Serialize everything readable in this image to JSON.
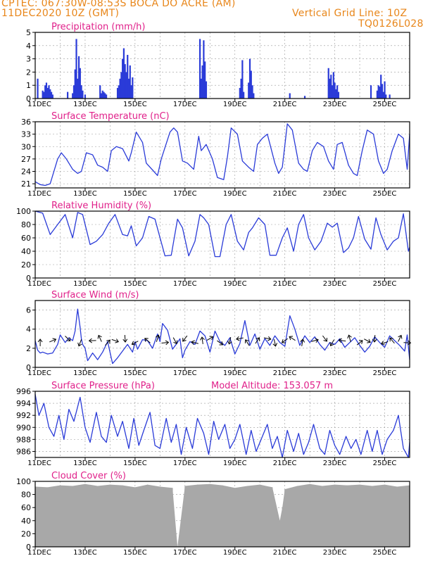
{
  "header": {
    "line1": "CPTEC:   067:30W-08:53S   BOCA DO ACRE (AM)",
    "line2": "11DEC2020 10Z (GMT)",
    "grid_note": "Vertical Grid Line: 10Z",
    "run_id": "TQ0126L028"
  },
  "colors": {
    "header": "#e8861a",
    "title": "#e0208a",
    "series": "#2a3bd8",
    "cloud": "#a8a8a8",
    "wind_arrow": "#000000",
    "grid": "#999999"
  },
  "chart_data": [
    {
      "type": "bar",
      "title": "Precipitation (mm/h)",
      "ylim": [
        0,
        5
      ],
      "yticks": [
        "0",
        "1",
        "2",
        "3",
        "4",
        "5"
      ],
      "xticks": [
        "11DEC",
        "13DEC",
        "15DEC",
        "17DEC",
        "19DEC",
        "21DEC",
        "23DEC",
        "25DEC"
      ],
      "grid": true,
      "x": [
        11.1,
        11.3,
        11.35,
        11.4,
        11.45,
        11.5,
        11.55,
        11.6,
        11.65,
        11.7,
        12.3,
        12.5,
        12.55,
        12.6,
        12.65,
        12.7,
        12.75,
        12.8,
        12.85,
        12.9,
        13.0,
        13.6,
        13.65,
        13.7,
        13.75,
        13.8,
        13.85,
        14.3,
        14.35,
        14.4,
        14.45,
        14.5,
        14.55,
        14.6,
        14.65,
        14.7,
        14.75,
        14.8,
        14.85,
        14.9,
        17.6,
        17.65,
        17.7,
        17.75,
        17.8,
        17.85,
        19.2,
        19.25,
        19.3,
        19.35,
        19.55,
        19.6,
        19.65,
        19.7,
        19.75,
        21.2,
        21.8,
        22.75,
        22.8,
        22.85,
        22.9,
        22.95,
        23.0,
        23.05,
        23.1,
        23.15,
        24.45,
        24.7,
        24.75,
        24.8,
        24.85,
        24.9,
        24.95,
        25.0,
        25.05,
        25.2
      ],
      "values": [
        1.5,
        0.6,
        0.5,
        1.0,
        1.2,
        0.8,
        1.0,
        0.7,
        0.5,
        0.3,
        0.5,
        0.4,
        1.0,
        2.2,
        4.5,
        1.5,
        3.2,
        2.3,
        1.0,
        0.6,
        0.3,
        1.0,
        0.4,
        0.6,
        0.5,
        0.4,
        0.3,
        0.8,
        1.0,
        1.5,
        2.0,
        3.0,
        3.8,
        2.6,
        2.0,
        3.3,
        1.5,
        2.5,
        1.0,
        1.6,
        4.5,
        1.5,
        2.5,
        4.4,
        2.8,
        1.3,
        0.8,
        1.5,
        2.9,
        0.5,
        1.2,
        3.0,
        2.1,
        1.0,
        0.4,
        0.4,
        0.2,
        2.3,
        1.5,
        1.8,
        1.0,
        2.0,
        1.2,
        0.7,
        1.0,
        0.5,
        1.0,
        0.6,
        1.0,
        0.9,
        1.8,
        1.1,
        0.5,
        1.3,
        0.3,
        0.3
      ]
    },
    {
      "type": "line",
      "title": "Surface Temperature (nC)",
      "ylim": [
        20,
        36
      ],
      "yticks": [
        "21",
        "24",
        "27",
        "30",
        "33",
        "36"
      ],
      "xticks": [
        "11DEC",
        "13DEC",
        "15DEC",
        "17DEC",
        "19DEC",
        "21DEC",
        "23DEC",
        "25DEC"
      ],
      "grid": true,
      "x": [
        11.0,
        11.2,
        11.4,
        11.6,
        11.9,
        12.05,
        12.25,
        12.5,
        12.7,
        12.85,
        13.05,
        13.3,
        13.5,
        13.7,
        13.9,
        14.05,
        14.25,
        14.5,
        14.75,
        14.85,
        15.05,
        15.3,
        15.45,
        15.75,
        15.9,
        16.05,
        16.4,
        16.55,
        16.7,
        16.9,
        17.1,
        17.35,
        17.55,
        17.65,
        17.85,
        18.1,
        18.3,
        18.55,
        18.7,
        18.85,
        19.1,
        19.3,
        19.55,
        19.75,
        19.9,
        20.1,
        20.3,
        20.6,
        20.75,
        20.9,
        21.1,
        21.3,
        21.55,
        21.75,
        21.9,
        22.1,
        22.3,
        22.55,
        22.75,
        22.95,
        23.1,
        23.3,
        23.55,
        23.75,
        23.9,
        24.1,
        24.3,
        24.55,
        24.75,
        24.95,
        25.1,
        25.3,
        25.55,
        25.75,
        25.9,
        26.0
      ],
      "values": [
        21.5,
        20.8,
        20.6,
        21.0,
        27.0,
        28.5,
        27.0,
        24.5,
        23.5,
        24.0,
        28.5,
        28.0,
        25.5,
        25.0,
        24.0,
        29.0,
        30.0,
        29.5,
        26.5,
        28.5,
        33.5,
        31.0,
        26.0,
        24.0,
        23.0,
        27.0,
        33.5,
        34.5,
        33.5,
        26.5,
        26.0,
        24.5,
        32.5,
        29.0,
        30.5,
        27.0,
        22.5,
        22.0,
        27.5,
        34.5,
        33.0,
        26.5,
        25.0,
        24.0,
        30.5,
        32.0,
        33.0,
        26.0,
        23.5,
        25.0,
        35.5,
        34.0,
        26.0,
        24.5,
        24.0,
        29.0,
        31.0,
        30.0,
        26.5,
        24.5,
        30.5,
        31.0,
        25.5,
        23.5,
        23.0,
        29.0,
        34.0,
        33.0,
        26.5,
        23.5,
        24.5,
        29.0,
        33.0,
        32.0,
        24.5,
        33.0
      ]
    },
    {
      "type": "line",
      "title": "Relative Humidity (%)",
      "ylim": [
        0,
        100
      ],
      "yticks": [
        "0",
        "20",
        "40",
        "60",
        "80",
        "100"
      ],
      "xticks": [
        "11DEC",
        "13DEC",
        "15DEC",
        "17DEC",
        "19DEC",
        "21DEC",
        "23DEC",
        "25DEC"
      ],
      "grid": true,
      "x": [
        11.0,
        11.3,
        11.6,
        11.9,
        12.2,
        12.5,
        12.7,
        12.9,
        13.2,
        13.45,
        13.7,
        13.95,
        14.2,
        14.5,
        14.7,
        14.85,
        15.05,
        15.3,
        15.55,
        15.8,
        15.95,
        16.2,
        16.45,
        16.7,
        16.9,
        17.15,
        17.4,
        17.6,
        17.75,
        17.95,
        18.2,
        18.4,
        18.65,
        18.85,
        19.1,
        19.35,
        19.55,
        19.7,
        19.95,
        20.2,
        20.4,
        20.65,
        20.9,
        21.1,
        21.35,
        21.55,
        21.75,
        21.95,
        22.2,
        22.45,
        22.7,
        22.9,
        23.1,
        23.35,
        23.55,
        23.75,
        23.95,
        24.2,
        24.45,
        24.65,
        24.85,
        25.1,
        25.35,
        25.55,
        25.75,
        25.95,
        26.0
      ],
      "values": [
        100,
        97,
        65,
        80,
        95,
        60,
        98,
        95,
        50,
        55,
        65,
        82,
        95,
        65,
        63,
        78,
        48,
        60,
        92,
        88,
        67,
        33,
        34,
        88,
        75,
        33,
        55,
        95,
        90,
        80,
        32,
        32,
        80,
        95,
        55,
        42,
        68,
        75,
        90,
        80,
        34,
        34,
        60,
        75,
        40,
        80,
        95,
        60,
        42,
        55,
        82,
        76,
        82,
        38,
        45,
        60,
        92,
        58,
        43,
        90,
        65,
        42,
        55,
        60,
        96,
        40,
        46
      ]
    },
    {
      "type": "line",
      "title": "Surface Wind (m/s)",
      "ylim": [
        0,
        7
      ],
      "yticks": [
        "0",
        "2",
        "4",
        "6"
      ],
      "xticks": [
        "11DEC",
        "13DEC",
        "15DEC",
        "17DEC",
        "19DEC",
        "21DEC",
        "23DEC",
        "25DEC"
      ],
      "grid": true,
      "x": [
        11.0,
        11.1,
        11.2,
        11.3,
        11.5,
        11.7,
        11.9,
        12.0,
        12.2,
        12.35,
        12.5,
        12.6,
        12.7,
        12.8,
        12.85,
        12.9,
        13.0,
        13.1,
        13.3,
        13.5,
        13.7,
        13.9,
        14.1,
        14.3,
        14.5,
        14.7,
        14.9,
        15.0,
        15.1,
        15.3,
        15.5,
        15.7,
        15.9,
        16.0,
        16.1,
        16.3,
        16.5,
        16.7,
        16.8,
        16.9,
        17.0,
        17.2,
        17.4,
        17.6,
        17.8,
        18.0,
        18.2,
        18.4,
        18.6,
        18.8,
        19.0,
        19.2,
        19.4,
        19.6,
        19.8,
        20.0,
        20.2,
        20.4,
        20.6,
        20.8,
        21.0,
        21.2,
        21.4,
        21.6,
        21.8,
        22.0,
        22.2,
        22.4,
        22.6,
        22.8,
        23.0,
        23.2,
        23.4,
        23.6,
        23.8,
        24.0,
        24.2,
        24.4,
        24.6,
        24.8,
        25.0,
        25.2,
        25.4,
        25.6,
        25.8,
        25.9,
        26.0
      ],
      "values": [
        2.8,
        1.8,
        1.5,
        1.6,
        1.4,
        1.5,
        2.4,
        3.4,
        2.6,
        3.1,
        2.8,
        3.8,
        6.1,
        4.2,
        3.0,
        2.4,
        2.0,
        0.7,
        1.5,
        0.8,
        1.6,
        2.7,
        0.4,
        1.0,
        1.7,
        2.4,
        1.6,
        2.7,
        1.9,
        2.9,
        2.8,
        2.0,
        3.5,
        2.7,
        4.6,
        3.9,
        1.9,
        2.6,
        3.0,
        1.0,
        1.8,
        2.7,
        2.4,
        3.8,
        3.3,
        1.6,
        3.8,
        2.7,
        2.3,
        3.1,
        1.4,
        2.5,
        4.9,
        2.3,
        3.5,
        1.9,
        3.0,
        2.3,
        3.3,
        2.6,
        2.2,
        5.4,
        4.0,
        2.3,
        3.3,
        2.6,
        3.2,
        2.4,
        1.8,
        2.6,
        2.4,
        3.0,
        2.1,
        2.6,
        3.1,
        2.3,
        1.6,
        2.2,
        3.2,
        2.6,
        2.1,
        3.3,
        2.8,
        2.3,
        1.7,
        3.4,
        0.8
      ]
    },
    {
      "type": "line",
      "title": "Surface Pressure (hPa)",
      "annotation": "Model Altitude: 153.057 m",
      "ylim": [
        985,
        996
      ],
      "yticks": [
        "986",
        "988",
        "990",
        "992",
        "994",
        "996"
      ],
      "xticks": [
        "11DEC",
        "13DEC",
        "15DEC",
        "17DEC",
        "19DEC",
        "21DEC",
        "23DEC",
        "25DEC"
      ],
      "grid": true,
      "x": [
        11.0,
        11.15,
        11.35,
        11.55,
        11.75,
        11.95,
        12.15,
        12.35,
        12.55,
        12.8,
        13.0,
        13.2,
        13.45,
        13.65,
        13.85,
        14.05,
        14.3,
        14.5,
        14.75,
        14.95,
        15.15,
        15.35,
        15.6,
        15.8,
        16.0,
        16.25,
        16.45,
        16.65,
        16.85,
        17.05,
        17.3,
        17.5,
        17.75,
        17.95,
        18.15,
        18.35,
        18.6,
        18.8,
        19.0,
        19.2,
        19.45,
        19.65,
        19.85,
        20.05,
        20.3,
        20.5,
        20.7,
        20.9,
        21.1,
        21.35,
        21.55,
        21.75,
        21.95,
        22.15,
        22.4,
        22.6,
        22.8,
        23.0,
        23.2,
        23.45,
        23.65,
        23.85,
        24.05,
        24.3,
        24.5,
        24.7,
        24.9,
        25.1,
        25.35,
        25.55,
        25.75,
        25.95,
        26.0
      ],
      "values": [
        995.5,
        992.0,
        994.0,
        990.0,
        988.5,
        992.0,
        988.0,
        993.0,
        991.0,
        995.0,
        990.0,
        987.5,
        992.5,
        988.5,
        987.5,
        992.0,
        988.5,
        991.0,
        986.5,
        991.5,
        987.0,
        989.5,
        992.5,
        987.0,
        986.5,
        991.5,
        987.5,
        990.5,
        985.5,
        990.0,
        986.5,
        991.5,
        989.0,
        985.5,
        991.0,
        988.0,
        990.5,
        986.5,
        988.0,
        990.5,
        985.5,
        989.5,
        986.0,
        988.0,
        990.5,
        986.5,
        988.5,
        985.0,
        989.5,
        986.0,
        989.0,
        985.5,
        987.5,
        990.5,
        986.5,
        985.5,
        989.5,
        987.0,
        985.5,
        988.5,
        986.5,
        988.0,
        985.5,
        989.5,
        986.0,
        989.5,
        985.5,
        988.0,
        989.5,
        992.0,
        986.5,
        985.0,
        987.5
      ]
    },
    {
      "type": "bar",
      "title": "Cloud Cover (%)",
      "ylim": [
        0,
        100
      ],
      "yticks": [
        "0",
        "20",
        "40",
        "60",
        "80",
        "100"
      ],
      "xticks": [
        "11DEC",
        "13DEC",
        "15DEC",
        "17DEC",
        "19DEC",
        "21DEC",
        "23DEC",
        "25DEC"
      ],
      "grid": true,
      "x": [
        11.0,
        11.5,
        12.0,
        12.5,
        13.0,
        13.5,
        14.0,
        14.5,
        15.0,
        15.5,
        16.0,
        16.5,
        16.7,
        17.0,
        17.5,
        18.0,
        18.5,
        19.0,
        19.5,
        20.0,
        20.5,
        20.8,
        20.9,
        21.0,
        21.5,
        22.0,
        22.5,
        23.0,
        23.5,
        24.0,
        24.5,
        25.0,
        25.5,
        26.0
      ],
      "values": [
        92,
        91,
        94,
        93,
        96,
        93,
        95,
        94,
        91,
        95,
        92,
        90,
        0,
        93,
        95,
        96,
        94,
        90,
        93,
        95,
        91,
        40,
        60,
        88,
        93,
        96,
        93,
        95,
        94,
        95,
        93,
        95,
        92,
        94
      ]
    }
  ]
}
